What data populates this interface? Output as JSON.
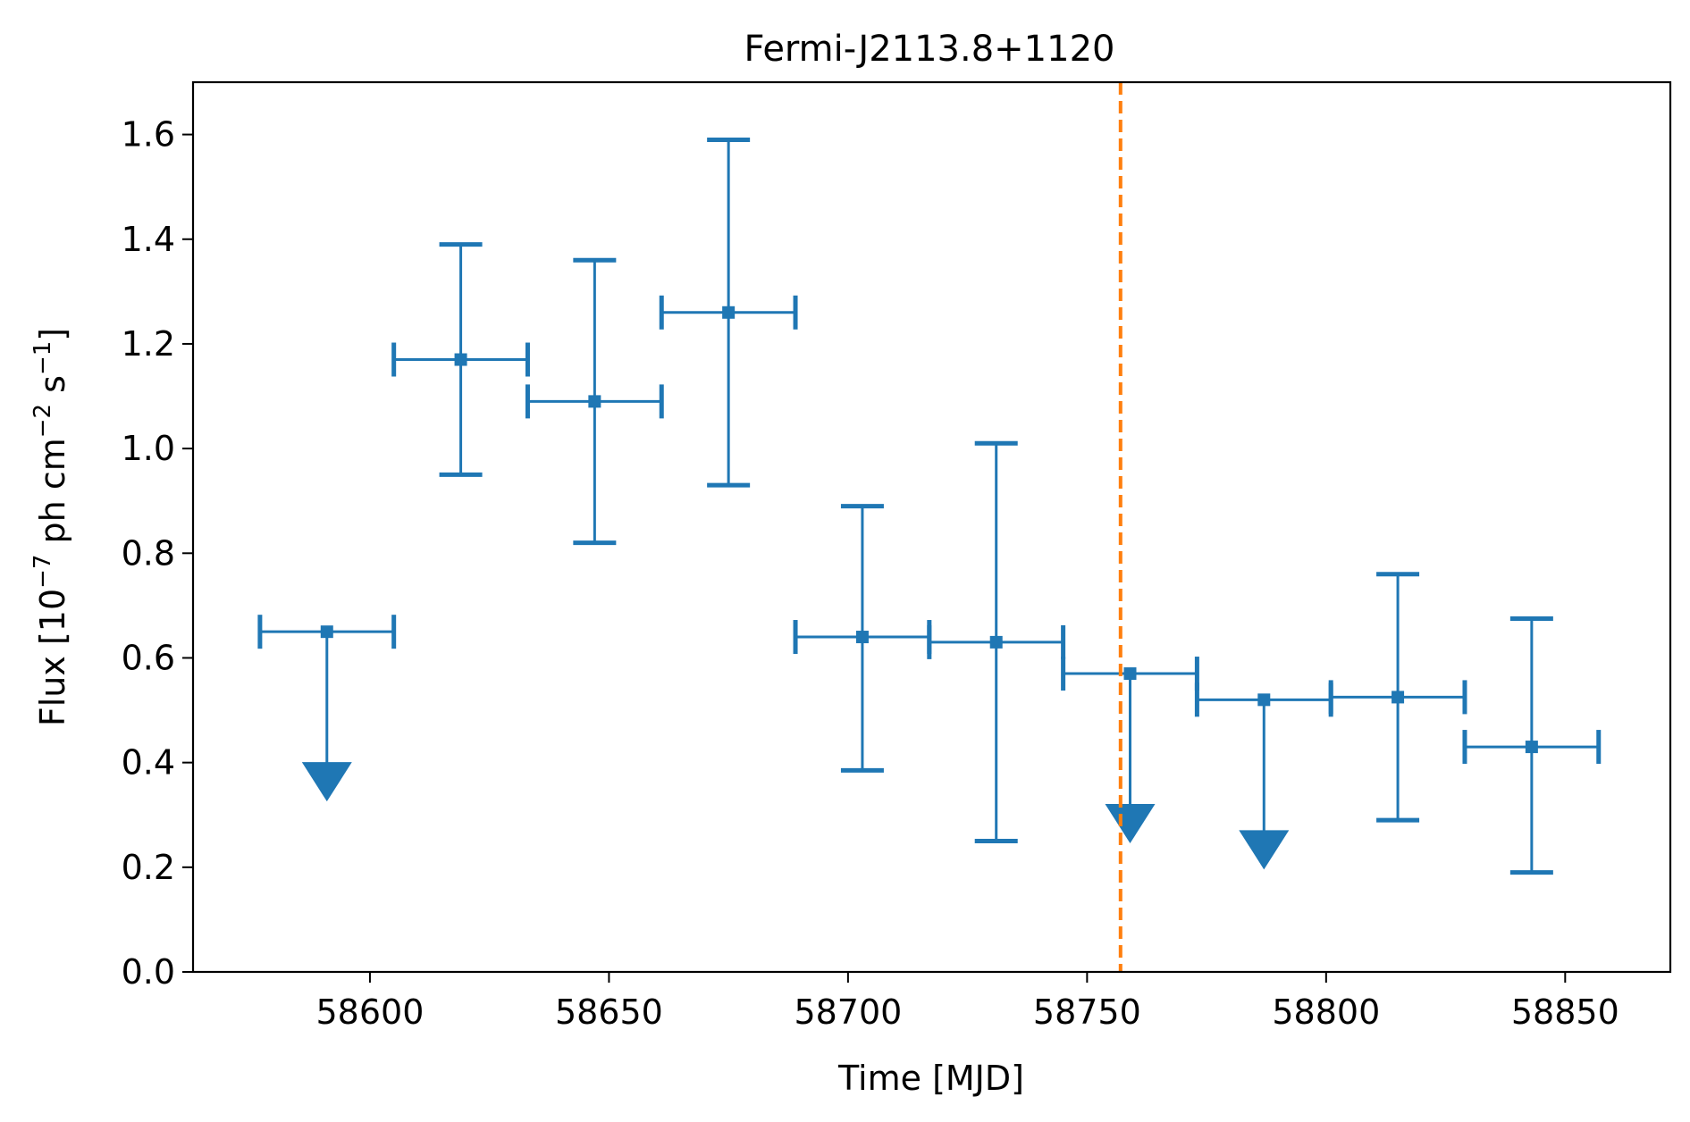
{
  "chart_data": {
    "type": "scatter",
    "title": "Fermi-J2113.8+1120",
    "xlabel": "Time [MJD]",
    "ylabel": {
      "prefix": "Flux [10",
      "exp1": "−7",
      "mid": " ph cm",
      "exp2": "−2",
      "mid2": " s",
      "exp3": "−1",
      "suffix": "]"
    },
    "xlim": [
      58563,
      58872
    ],
    "ylim": [
      0.0,
      1.7
    ],
    "xticks": [
      58600,
      58650,
      58700,
      58750,
      58800,
      58850
    ],
    "xtick_labels": [
      "58600",
      "58650",
      "58700",
      "58750",
      "58800",
      "58850"
    ],
    "yticks": [
      0.0,
      0.2,
      0.4,
      0.6,
      0.8,
      1.0,
      1.2,
      1.4,
      1.6
    ],
    "ytick_labels": [
      "0.0",
      "0.2",
      "0.4",
      "0.6",
      "0.8",
      "1.0",
      "1.2",
      "1.4",
      "1.6"
    ],
    "series_color": "#1f77b4",
    "vline": {
      "x": 58757,
      "color": "#ff7f0e",
      "style": "dashed"
    },
    "points": [
      {
        "x": 58591,
        "xerr": 14,
        "y": 0.65,
        "upper_limit": true
      },
      {
        "x": 58619,
        "xerr": 14,
        "y": 1.17,
        "ylo": 0.95,
        "yhi": 1.39
      },
      {
        "x": 58647,
        "xerr": 14,
        "y": 1.09,
        "ylo": 0.82,
        "yhi": 1.36
      },
      {
        "x": 58675,
        "xerr": 14,
        "y": 1.26,
        "ylo": 0.93,
        "yhi": 1.59
      },
      {
        "x": 58703,
        "xerr": 14,
        "y": 0.64,
        "ylo": 0.385,
        "yhi": 0.89
      },
      {
        "x": 58731,
        "xerr": 14,
        "y": 0.63,
        "ylo": 0.25,
        "yhi": 1.01
      },
      {
        "x": 58759,
        "xerr": 14,
        "y": 0.57,
        "upper_limit": true
      },
      {
        "x": 58787,
        "xerr": 14,
        "y": 0.52,
        "upper_limit": true
      },
      {
        "x": 58815,
        "xerr": 14,
        "y": 0.525,
        "ylo": 0.29,
        "yhi": 0.76
      },
      {
        "x": 58843,
        "xerr": 14,
        "y": 0.43,
        "ylo": 0.19,
        "yhi": 0.675
      }
    ],
    "grid": false,
    "legend": "none"
  }
}
